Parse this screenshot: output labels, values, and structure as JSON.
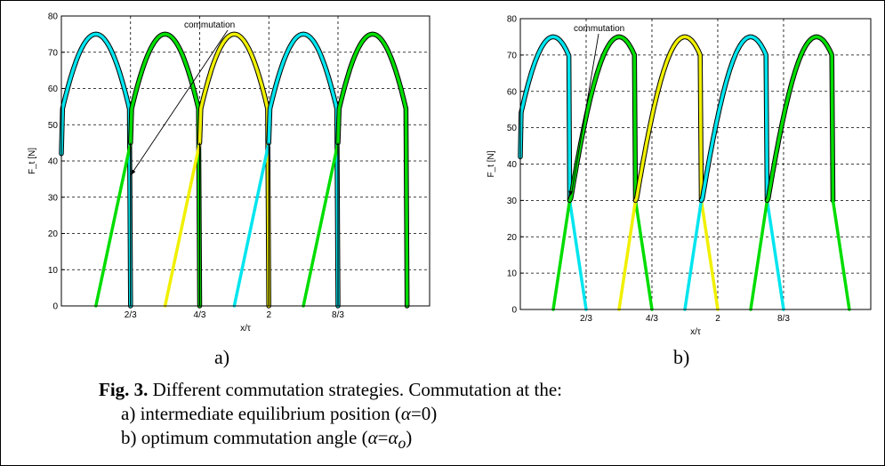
{
  "chart_data": [
    {
      "type": "line",
      "panel": "a",
      "title": "",
      "xlabel": "x/τ",
      "ylabel": "F_t [N]",
      "ylim": [
        0,
        80
      ],
      "yticks": [
        0,
        10,
        20,
        30,
        40,
        50,
        60,
        70,
        80
      ],
      "xlim": [
        0,
        3.55
      ],
      "xticks": [
        0.6667,
        1.3333,
        2,
        2.6667
      ],
      "xtick_labels": [
        "2/3",
        "4/3",
        "2",
        "8/3"
      ],
      "grid": true,
      "grid_style": "dashed",
      "annotation": {
        "text": "commutation",
        "target": [
          0.6667,
          36
        ]
      },
      "colors": {
        "cyan": "#00e5ee",
        "green": "#00dd00",
        "yellow": "#f0f000",
        "black": "#000000"
      },
      "series": [
        {
          "color": "cyan",
          "x": [
            0.0,
            0.333,
            0.6667
          ],
          "y": [
            42,
            75,
            0
          ]
        },
        {
          "color": "green",
          "x": [
            0.333,
            0.6667
          ],
          "y": [
            0,
            45
          ]
        },
        {
          "color": "green",
          "x": [
            0.6667,
            1.0,
            1.3333
          ],
          "y": [
            45,
            75,
            0
          ]
        },
        {
          "color": "yellow",
          "x": [
            1.0,
            1.3333
          ],
          "y": [
            0,
            45
          ]
        },
        {
          "color": "yellow",
          "x": [
            1.3333,
            1.6667,
            2.0
          ],
          "y": [
            45,
            75,
            0
          ]
        },
        {
          "color": "cyan",
          "x": [
            1.6667,
            2.0
          ],
          "y": [
            0,
            45
          ]
        },
        {
          "color": "cyan",
          "x": [
            2.0,
            2.3333,
            2.6667
          ],
          "y": [
            45,
            75,
            0
          ]
        },
        {
          "color": "green",
          "x": [
            2.3333,
            2.6667
          ],
          "y": [
            0,
            45
          ]
        },
        {
          "color": "green",
          "x": [
            2.6667,
            3.0,
            3.3333
          ],
          "y": [
            45,
            75,
            0
          ]
        }
      ],
      "commutation_lines_x": [
        0.6667,
        1.3333,
        2.0,
        2.6667
      ]
    },
    {
      "type": "line",
      "panel": "b",
      "title": "",
      "xlabel": "x/τ",
      "ylabel": "F_t [N]",
      "ylim": [
        0,
        80
      ],
      "yticks": [
        0,
        10,
        20,
        30,
        40,
        50,
        60,
        70,
        80
      ],
      "xlim": [
        0,
        3.55
      ],
      "xticks": [
        0.6667,
        1.3333,
        2,
        2.6667
      ],
      "xtick_labels": [
        "2/3",
        "4/3",
        "2",
        "8/3"
      ],
      "grid": true,
      "grid_style": "dashed",
      "annotation": {
        "text": "commutation",
        "target": [
          0.5,
          31
        ]
      },
      "colors": {
        "cyan": "#00e5ee",
        "green": "#00dd00",
        "yellow": "#f0f000",
        "black": "#000000"
      },
      "series": [
        {
          "color": "cyan",
          "x": [
            0.0,
            0.333,
            0.5
          ],
          "y": [
            42,
            75,
            30
          ]
        },
        {
          "color": "cyan",
          "x": [
            0.5,
            0.6667
          ],
          "y": [
            30,
            0
          ]
        },
        {
          "color": "green",
          "x": [
            0.333,
            0.5
          ],
          "y": [
            0,
            30
          ]
        },
        {
          "color": "green",
          "x": [
            0.5,
            1.0,
            1.1667
          ],
          "y": [
            30,
            75,
            30
          ]
        },
        {
          "color": "green",
          "x": [
            1.1667,
            1.3333
          ],
          "y": [
            30,
            0
          ]
        },
        {
          "color": "yellow",
          "x": [
            1.0,
            1.1667
          ],
          "y": [
            0,
            30
          ]
        },
        {
          "color": "yellow",
          "x": [
            1.1667,
            1.6667,
            1.8333
          ],
          "y": [
            30,
            75,
            30
          ]
        },
        {
          "color": "yellow",
          "x": [
            1.8333,
            2.0
          ],
          "y": [
            30,
            0
          ]
        },
        {
          "color": "cyan",
          "x": [
            1.6667,
            1.8333
          ],
          "y": [
            0,
            30
          ]
        },
        {
          "color": "cyan",
          "x": [
            1.8333,
            2.3333,
            2.5
          ],
          "y": [
            30,
            75,
            30
          ]
        },
        {
          "color": "cyan",
          "x": [
            2.5,
            2.6667
          ],
          "y": [
            30,
            0
          ]
        },
        {
          "color": "green",
          "x": [
            2.3333,
            2.5
          ],
          "y": [
            0,
            30
          ]
        },
        {
          "color": "green",
          "x": [
            2.5,
            3.0,
            3.1667
          ],
          "y": [
            30,
            75,
            30
          ]
        },
        {
          "color": "green",
          "x": [
            3.1667,
            3.3333
          ],
          "y": [
            30,
            0
          ]
        }
      ]
    }
  ],
  "labels": {
    "sub_a": "a)",
    "sub_b": "b)",
    "fig_label": "Fig. 3.",
    "caption_main": " Different commutation strategies. Commutation at the:",
    "caption_a_prefix": "a) intermediate equilibrium position (",
    "caption_a_sym": "α",
    "caption_a_suffix": "=0)",
    "caption_b_prefix": "b) optimum commutation angle (",
    "caption_b_sym": "α",
    "caption_b_eq": "=",
    "caption_b_sym2": "α",
    "caption_b_sub": "o",
    "caption_b_suffix": ")"
  }
}
